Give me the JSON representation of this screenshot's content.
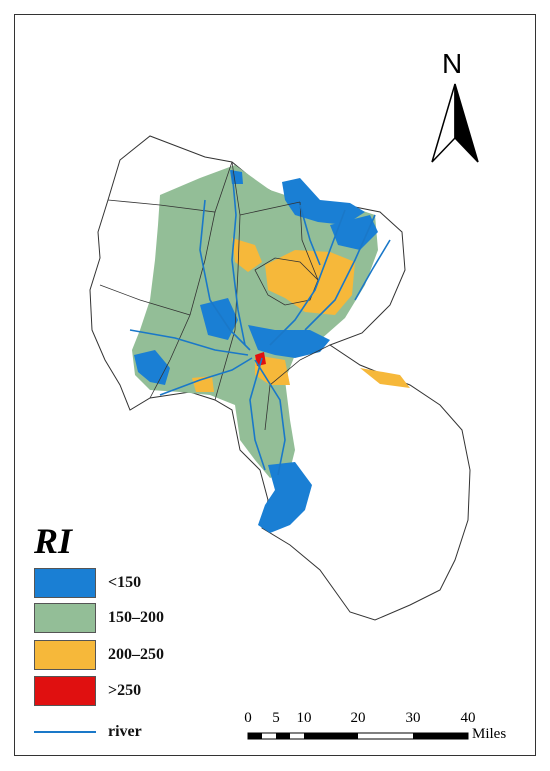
{
  "north_arrow": {
    "label": "N"
  },
  "legend": {
    "title": "RI",
    "items": [
      {
        "label": "<150",
        "color": "#1a7fd4"
      },
      {
        "label": "150–200",
        "color": "#93be97"
      },
      {
        "label": "200–250",
        "color": "#f6b83a"
      },
      {
        "label": ">250",
        "color": "#e01010"
      }
    ],
    "river": {
      "label": "river",
      "color": "#1a78c8"
    }
  },
  "scale_bar": {
    "ticks": [
      "0",
      "5",
      "10",
      "20",
      "30",
      "40"
    ],
    "unit": "Miles"
  }
}
